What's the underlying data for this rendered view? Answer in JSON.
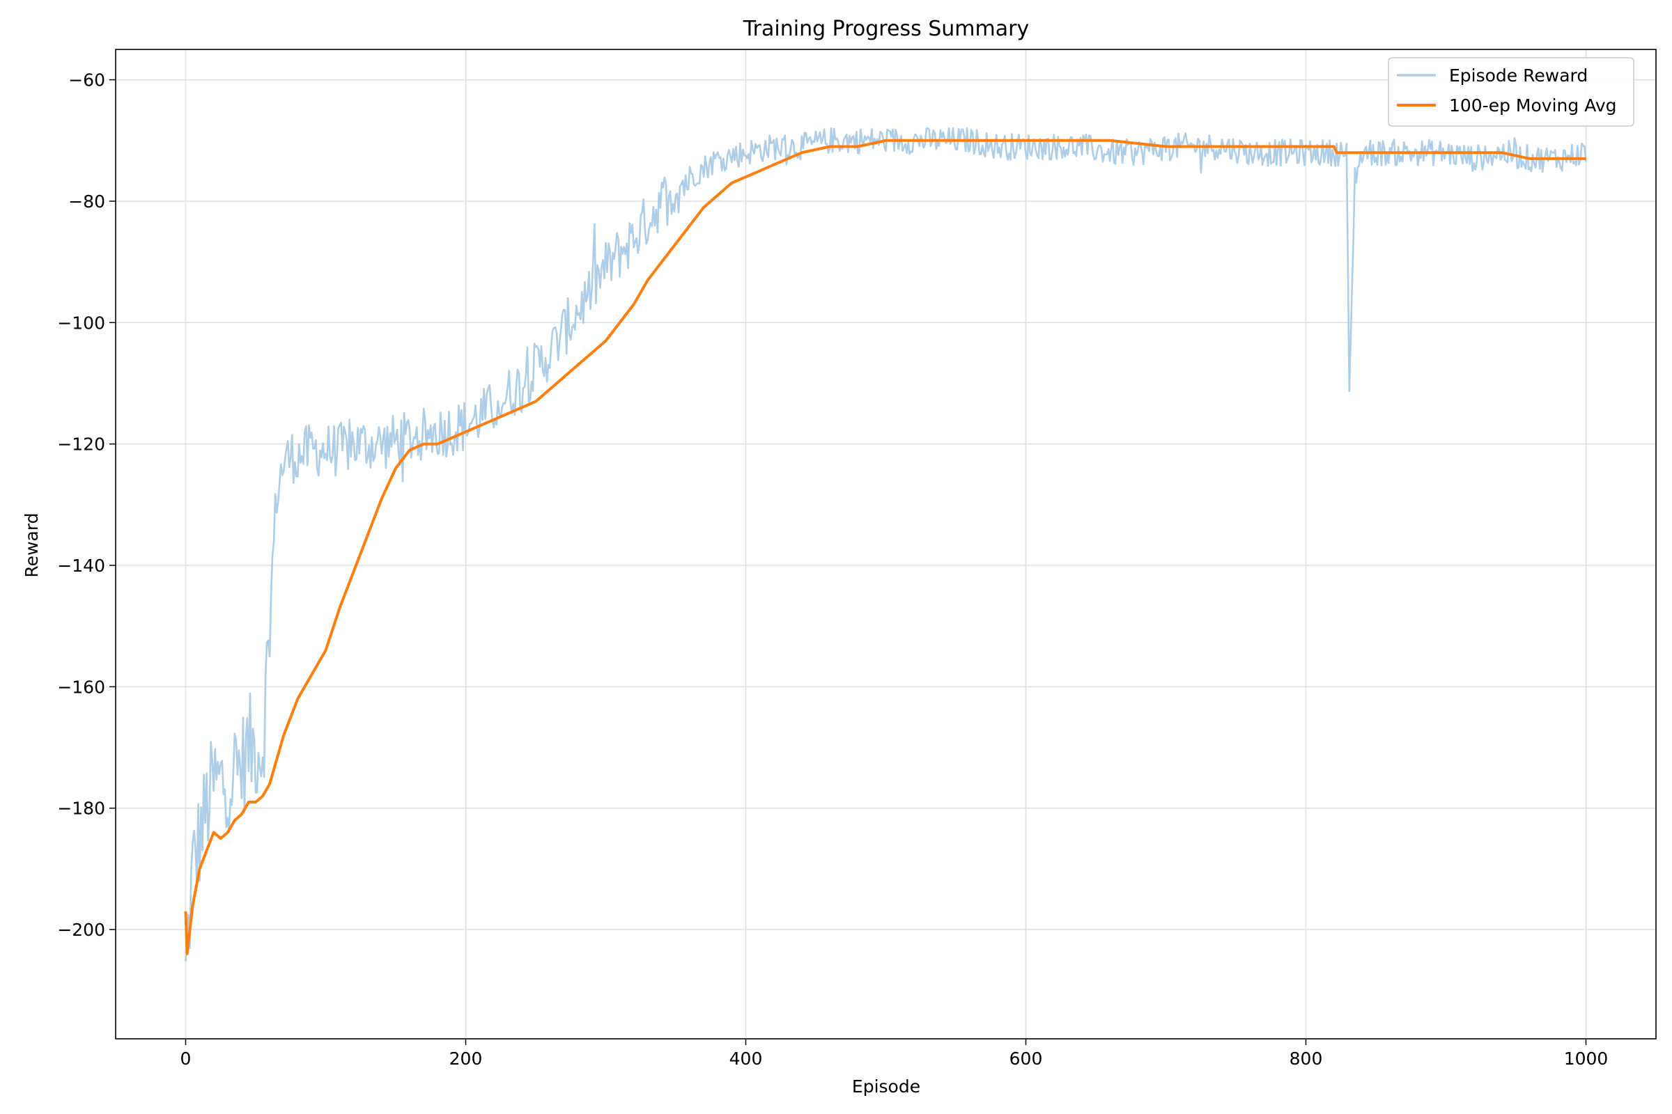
{
  "chart_data": {
    "type": "line",
    "title": "Training Progress Summary",
    "xlabel": "Episode",
    "ylabel": "Reward",
    "xlim": [
      -50,
      1050
    ],
    "ylim": [
      -218,
      -55
    ],
    "x_ticks": [
      0,
      200,
      400,
      600,
      800,
      1000
    ],
    "y_ticks": [
      -200,
      -180,
      -160,
      -140,
      -120,
      -100,
      -80,
      -60
    ],
    "x_tick_labels": [
      "0",
      "200",
      "400",
      "600",
      "800",
      "1000"
    ],
    "y_tick_labels": [
      "−200",
      "−180",
      "−160",
      "−140",
      "−120",
      "−100",
      "−80",
      "−60"
    ],
    "grid": true,
    "legend_position": "top-right",
    "series": [
      {
        "name": "Episode Reward",
        "color": "#aecde6",
        "style": "noisy-line",
        "x": [
          0,
          5,
          10,
          15,
          20,
          25,
          30,
          35,
          40,
          45,
          50,
          55,
          60,
          62,
          65,
          70,
          75,
          80,
          90,
          100,
          110,
          120,
          140,
          160,
          180,
          200,
          220,
          240,
          260,
          280,
          300,
          320,
          340,
          360,
          380,
          400,
          420,
          440,
          460,
          480,
          500,
          520,
          540,
          560,
          580,
          600,
          620,
          640,
          660,
          680,
          700,
          720,
          740,
          760,
          780,
          800,
          820,
          829,
          831,
          835,
          840,
          860,
          880,
          900,
          920,
          940,
          960,
          980,
          1000
        ],
        "values": [
          -208,
          -190,
          -185,
          -180,
          -176,
          -176,
          -175,
          -174,
          -173,
          -170,
          -170,
          -170,
          -150,
          -140,
          -128,
          -123,
          -122,
          -122,
          -121,
          -121,
          -121,
          -120,
          -120,
          -119,
          -118,
          -117,
          -114,
          -110,
          -105,
          -98,
          -91,
          -86,
          -80,
          -76,
          -73,
          -72,
          -71,
          -71,
          -70,
          -70,
          -70,
          -70,
          -70,
          -70,
          -71,
          -71,
          -71,
          -71,
          -72,
          -72,
          -71,
          -71,
          -71,
          -72,
          -72,
          -72,
          -72,
          -72,
          -112,
          -76,
          -72,
          -72,
          -72,
          -72,
          -73,
          -72,
          -73,
          -73,
          -72
        ]
      },
      {
        "name": "100-ep Moving Avg",
        "color": "#ff7f0e",
        "style": "line",
        "x": [
          0,
          1,
          5,
          10,
          15,
          20,
          25,
          30,
          35,
          40,
          45,
          50,
          55,
          60,
          65,
          70,
          80,
          90,
          100,
          110,
          120,
          130,
          140,
          150,
          160,
          170,
          180,
          190,
          200,
          210,
          220,
          230,
          240,
          250,
          260,
          270,
          280,
          290,
          300,
          310,
          320,
          330,
          340,
          350,
          360,
          370,
          380,
          390,
          400,
          410,
          420,
          430,
          440,
          460,
          480,
          500,
          520,
          560,
          580,
          600,
          620,
          660,
          700,
          740,
          780,
          820,
          822,
          830,
          860,
          900,
          920,
          940,
          960,
          980,
          1000
        ],
        "values": [
          -197,
          -204,
          -196,
          -190,
          -187,
          -184,
          -185,
          -184,
          -182,
          -181,
          -179,
          -179,
          -178,
          -176,
          -172,
          -168,
          -162,
          -158,
          -154,
          -147,
          -141,
          -135,
          -129,
          -124,
          -121,
          -120,
          -120,
          -119,
          -118,
          -117,
          -116,
          -115,
          -114,
          -113,
          -111,
          -109,
          -107,
          -105,
          -103,
          -100,
          -97,
          -93,
          -90,
          -87,
          -84,
          -81,
          -79,
          -77,
          -76,
          -75,
          -74,
          -73,
          -72,
          -71,
          -71,
          -70,
          -70,
          -70,
          -70,
          -70,
          -70,
          -70,
          -71,
          -71,
          -71,
          -71,
          -72,
          -72,
          -72,
          -72,
          -72,
          -72,
          -73,
          -73,
          -73
        ]
      }
    ]
  }
}
